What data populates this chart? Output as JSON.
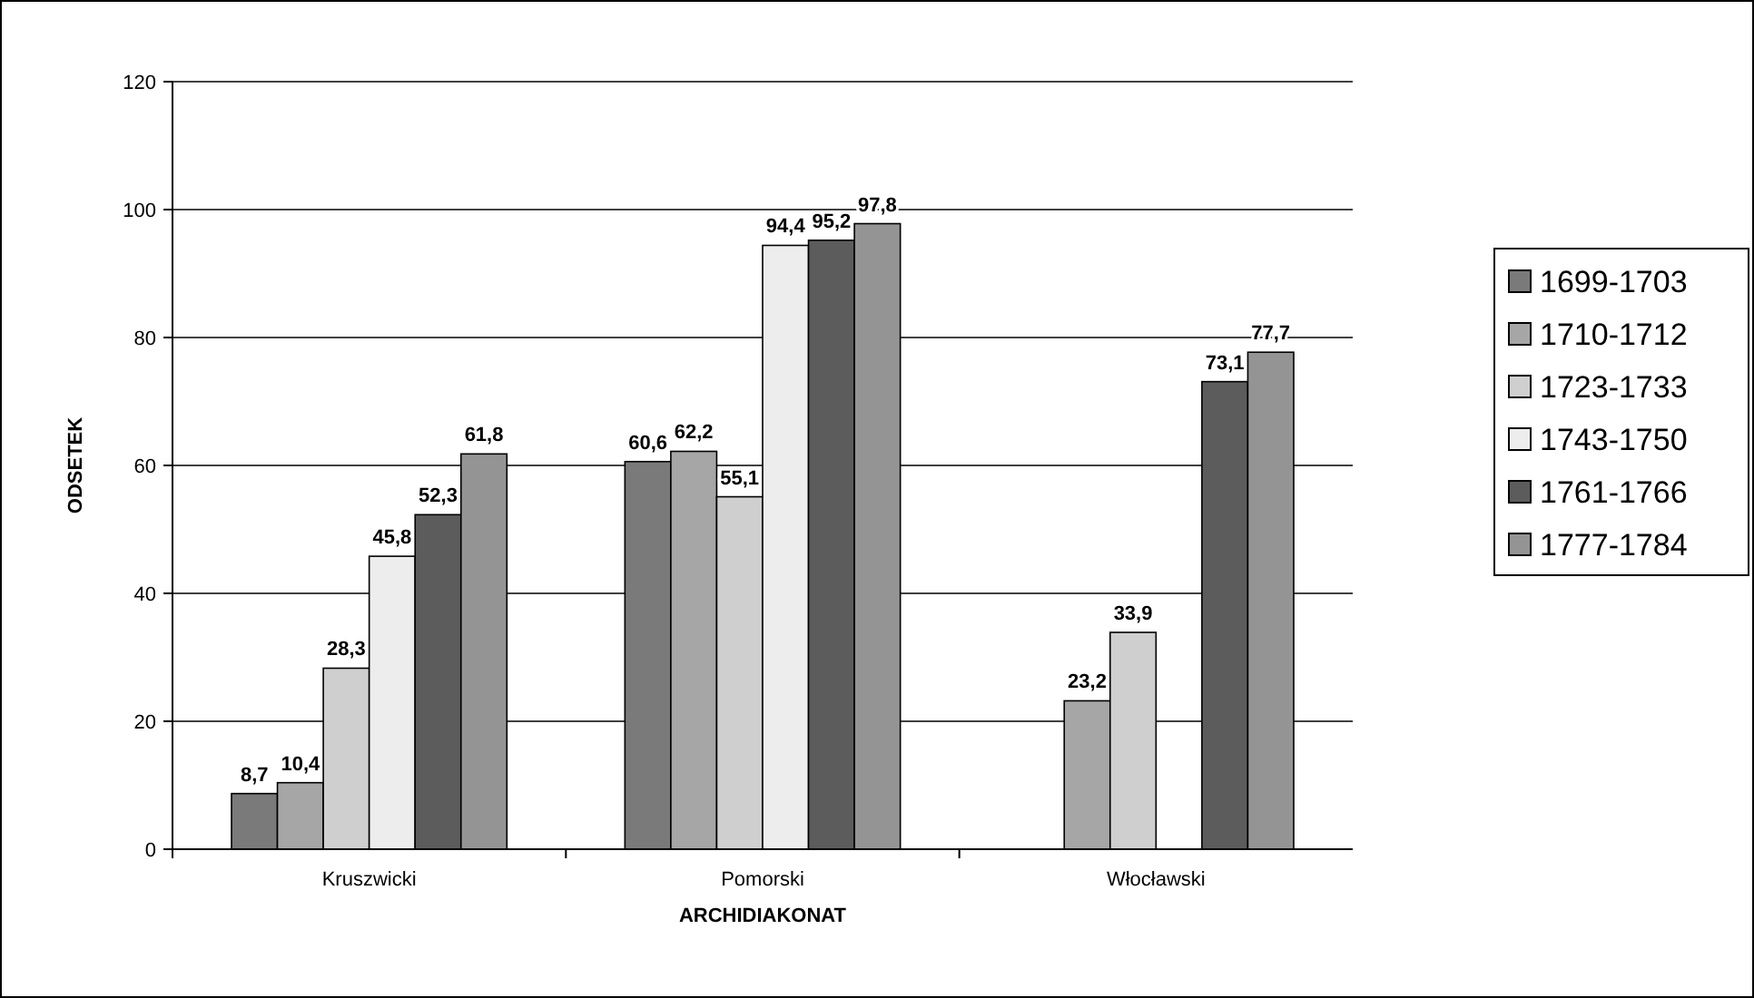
{
  "chart_data": {
    "type": "bar",
    "xlabel": "ARCHIDIAKONAT",
    "ylabel": "ODSETEK",
    "categories": [
      "Kruszwicki",
      "Pomorski",
      "Włocławski"
    ],
    "series": [
      {
        "name": "1699-1703",
        "color": "#7a7a7a",
        "values": [
          8.7,
          60.6,
          null
        ],
        "value_labels": [
          "8,7",
          "60,6",
          null
        ]
      },
      {
        "name": "1710-1712",
        "color": "#a6a6a6",
        "values": [
          10.4,
          62.2,
          23.2
        ],
        "value_labels": [
          "10,4",
          "62,2",
          "23,2"
        ]
      },
      {
        "name": "1723-1733",
        "color": "#cfcfcf",
        "values": [
          28.3,
          55.1,
          33.9
        ],
        "value_labels": [
          "28,3",
          "55,1",
          "33,9"
        ]
      },
      {
        "name": "1743-1750",
        "color": "#ededed",
        "values": [
          45.8,
          94.4,
          null
        ],
        "value_labels": [
          "45,8",
          "94,4",
          null
        ]
      },
      {
        "name": "1761-1766",
        "color": "#5c5c5c",
        "values": [
          52.3,
          95.2,
          73.1
        ],
        "value_labels": [
          "52,3",
          "95,2",
          "73,1"
        ]
      },
      {
        "name": "1777-1784",
        "color": "#949494",
        "values": [
          61.8,
          97.8,
          77.7
        ],
        "value_labels": [
          "61,8",
          "97,8",
          "77,7"
        ]
      }
    ],
    "ylim": [
      0,
      120
    ],
    "yticks": [
      0,
      20,
      40,
      60,
      80,
      100,
      120
    ],
    "grid": "y",
    "legend": "right"
  }
}
